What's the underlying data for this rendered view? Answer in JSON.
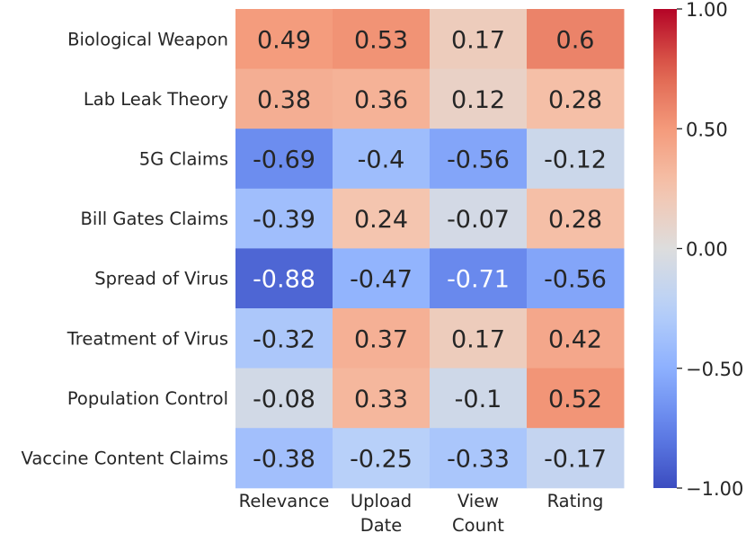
{
  "chart_data": {
    "type": "heatmap",
    "title": "",
    "rows": [
      "Biological Weapon",
      "Lab Leak Theory",
      "5G Claims",
      "Bill Gates Claims",
      "Spread of Virus",
      "Treatment of Virus",
      "Population Control",
      "Vaccine Content Claims"
    ],
    "columns": [
      [
        "Relevance"
      ],
      [
        "Upload",
        "Date"
      ],
      [
        "View",
        "Count"
      ],
      [
        "Rating"
      ]
    ],
    "values": [
      [
        0.49,
        0.53,
        0.17,
        0.6
      ],
      [
        0.38,
        0.36,
        0.12,
        0.28
      ],
      [
        -0.69,
        -0.4,
        -0.56,
        -0.12
      ],
      [
        -0.39,
        0.24,
        -0.07,
        0.28
      ],
      [
        -0.88,
        -0.47,
        -0.71,
        -0.56
      ],
      [
        -0.32,
        0.37,
        0.17,
        0.42
      ],
      [
        -0.08,
        0.33,
        -0.1,
        0.52
      ],
      [
        -0.38,
        -0.25,
        -0.33,
        -0.17
      ]
    ],
    "value_labels": [
      [
        "0.49",
        "0.53",
        "0.17",
        "0.6"
      ],
      [
        "0.38",
        "0.36",
        "0.12",
        "0.28"
      ],
      [
        "-0.69",
        "-0.4",
        "-0.56",
        "-0.12"
      ],
      [
        "-0.39",
        "0.24",
        "-0.07",
        "0.28"
      ],
      [
        "-0.88",
        "-0.47",
        "-0.71",
        "-0.56"
      ],
      [
        "-0.32",
        "0.37",
        "0.17",
        "0.42"
      ],
      [
        "-0.08",
        "0.33",
        "-0.1",
        "0.52"
      ],
      [
        "-0.38",
        "-0.25",
        "-0.33",
        "-0.17"
      ]
    ],
    "colormap": "coolwarm",
    "vmin": -1.0,
    "vmax": 1.0,
    "colorbar": {
      "ticks": [
        1.0,
        0.5,
        0.0,
        -0.5,
        -1.0
      ],
      "tick_labels": [
        "1.00",
        "0.50",
        "0.00",
        "−0.50",
        "−1.00"
      ]
    }
  }
}
